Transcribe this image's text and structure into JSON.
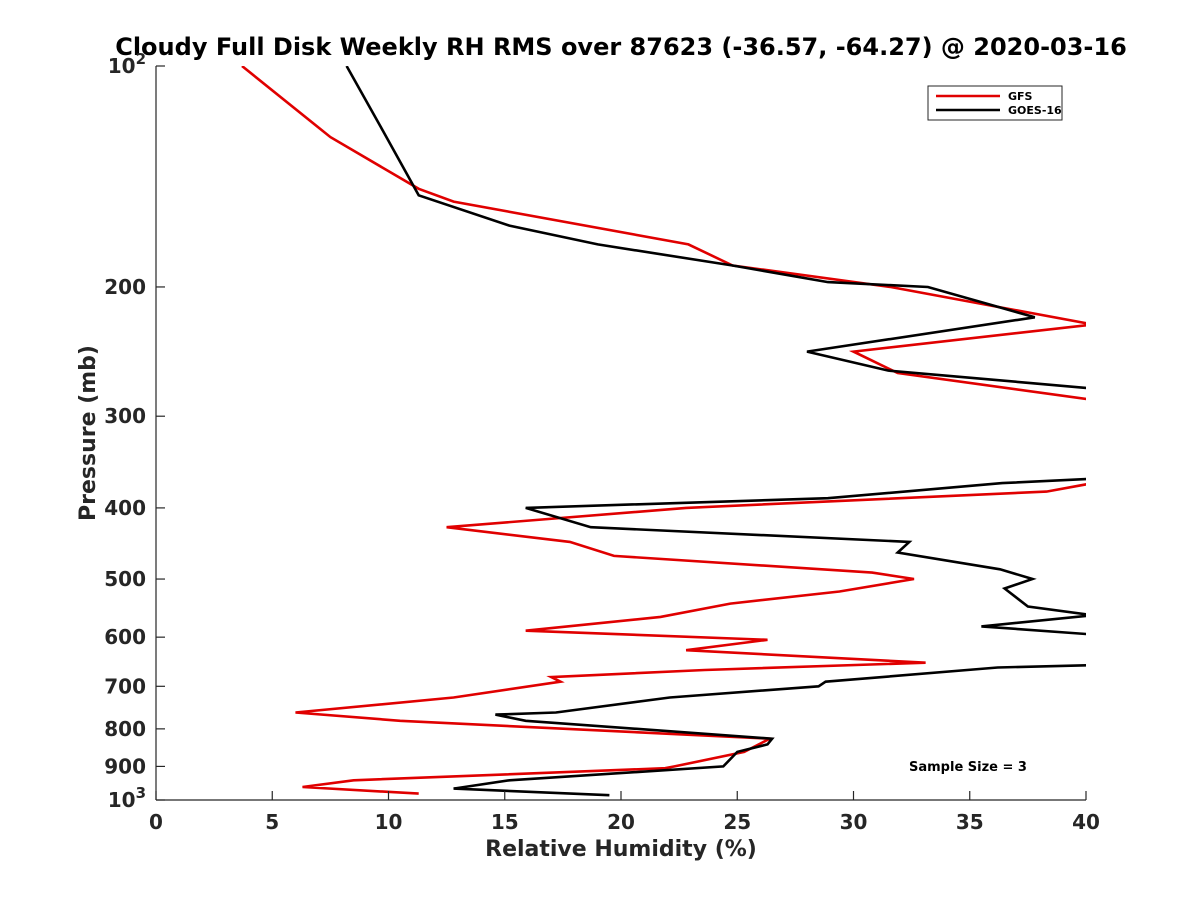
{
  "chart_data": {
    "type": "line",
    "title": "Cloudy Full Disk Weekly RH RMS over 87623 (-36.57, -64.27) @ 2020-03-16",
    "xlabel": "Relative Humidity (%)",
    "ylabel": "Pressure (mb)",
    "xlim": [
      0,
      40
    ],
    "ylim": [
      100,
      1000
    ],
    "yscale": "log",
    "y_reversed": true,
    "x_ticks": [
      "0",
      "5",
      "10",
      "15",
      "20",
      "25",
      "30",
      "35",
      "40"
    ],
    "y_ticks": [
      {
        "value": 100,
        "base": "10",
        "exp": "2"
      },
      {
        "value": 200,
        "label": "200"
      },
      {
        "value": 300,
        "label": "300"
      },
      {
        "value": 400,
        "label": "400"
      },
      {
        "value": 500,
        "label": "500"
      },
      {
        "value": 600,
        "label": "600"
      },
      {
        "value": 700,
        "label": "700"
      },
      {
        "value": 800,
        "label": "800"
      },
      {
        "value": 900,
        "label": "900"
      },
      {
        "value": 1000,
        "base": "10",
        "exp": "3"
      }
    ],
    "legend_position": "top-right",
    "annotation": "Sample Size = 3",
    "series": [
      {
        "name": "GFS",
        "color": "#e00000",
        "points": [
          [
            3.7,
            100
          ],
          [
            7.5,
            125
          ],
          [
            11.3,
            147
          ],
          [
            12.8,
            153
          ],
          [
            22.9,
            175
          ],
          [
            24.8,
            187
          ],
          [
            31.6,
            200
          ],
          [
            40.3,
            225
          ],
          [
            30.0,
            245
          ],
          [
            31.9,
            262
          ],
          [
            40.3,
            285
          ],
          [
            40.3,
            370
          ],
          [
            38.3,
            380
          ],
          [
            22.8,
            400
          ],
          [
            12.5,
            425
          ],
          [
            17.8,
            445
          ],
          [
            19.7,
            465
          ],
          [
            30.8,
            490
          ],
          [
            32.6,
            500
          ],
          [
            29.4,
            520
          ],
          [
            24.7,
            540
          ],
          [
            21.7,
            563
          ],
          [
            15.9,
            588
          ],
          [
            26.3,
            605
          ],
          [
            22.8,
            625
          ],
          [
            33.1,
            650
          ],
          [
            23.6,
            665
          ],
          [
            17.0,
            680
          ],
          [
            17.4,
            690
          ],
          [
            12.8,
            725
          ],
          [
            6.0,
            760
          ],
          [
            10.5,
            780
          ],
          [
            26.4,
            825
          ],
          [
            25.3,
            860
          ],
          [
            22.3,
            900
          ],
          [
            21.9,
            905
          ],
          [
            8.5,
            940
          ],
          [
            6.3,
            960
          ],
          [
            11.3,
            980
          ]
        ]
      },
      {
        "name": "GOES-16",
        "color": "#000000",
        "points": [
          [
            8.2,
            100
          ],
          [
            9.6,
            120
          ],
          [
            11.3,
            150
          ],
          [
            15.2,
            165
          ],
          [
            19.0,
            175
          ],
          [
            24.8,
            187
          ],
          [
            28.9,
            197
          ],
          [
            33.2,
            200
          ],
          [
            37.8,
            220
          ],
          [
            28.0,
            245
          ],
          [
            31.5,
            260
          ],
          [
            40.3,
            275
          ],
          [
            40.3,
            365
          ],
          [
            36.4,
            370
          ],
          [
            28.9,
            388
          ],
          [
            15.9,
            400
          ],
          [
            18.7,
            425
          ],
          [
            32.4,
            445
          ],
          [
            31.9,
            460
          ],
          [
            36.3,
            485
          ],
          [
            37.7,
            500
          ],
          [
            36.5,
            515
          ],
          [
            37.5,
            545
          ],
          [
            40.3,
            560
          ],
          [
            35.5,
            580
          ],
          [
            40.3,
            595
          ],
          [
            40.3,
            655
          ],
          [
            36.2,
            660
          ],
          [
            28.8,
            690
          ],
          [
            28.5,
            700
          ],
          [
            22.1,
            725
          ],
          [
            17.2,
            760
          ],
          [
            14.6,
            765
          ],
          [
            15.9,
            780
          ],
          [
            26.5,
            825
          ],
          [
            26.3,
            840
          ],
          [
            25.0,
            860
          ],
          [
            24.4,
            900
          ],
          [
            15.2,
            940
          ],
          [
            12.8,
            965
          ],
          [
            19.5,
            985
          ]
        ]
      }
    ]
  }
}
